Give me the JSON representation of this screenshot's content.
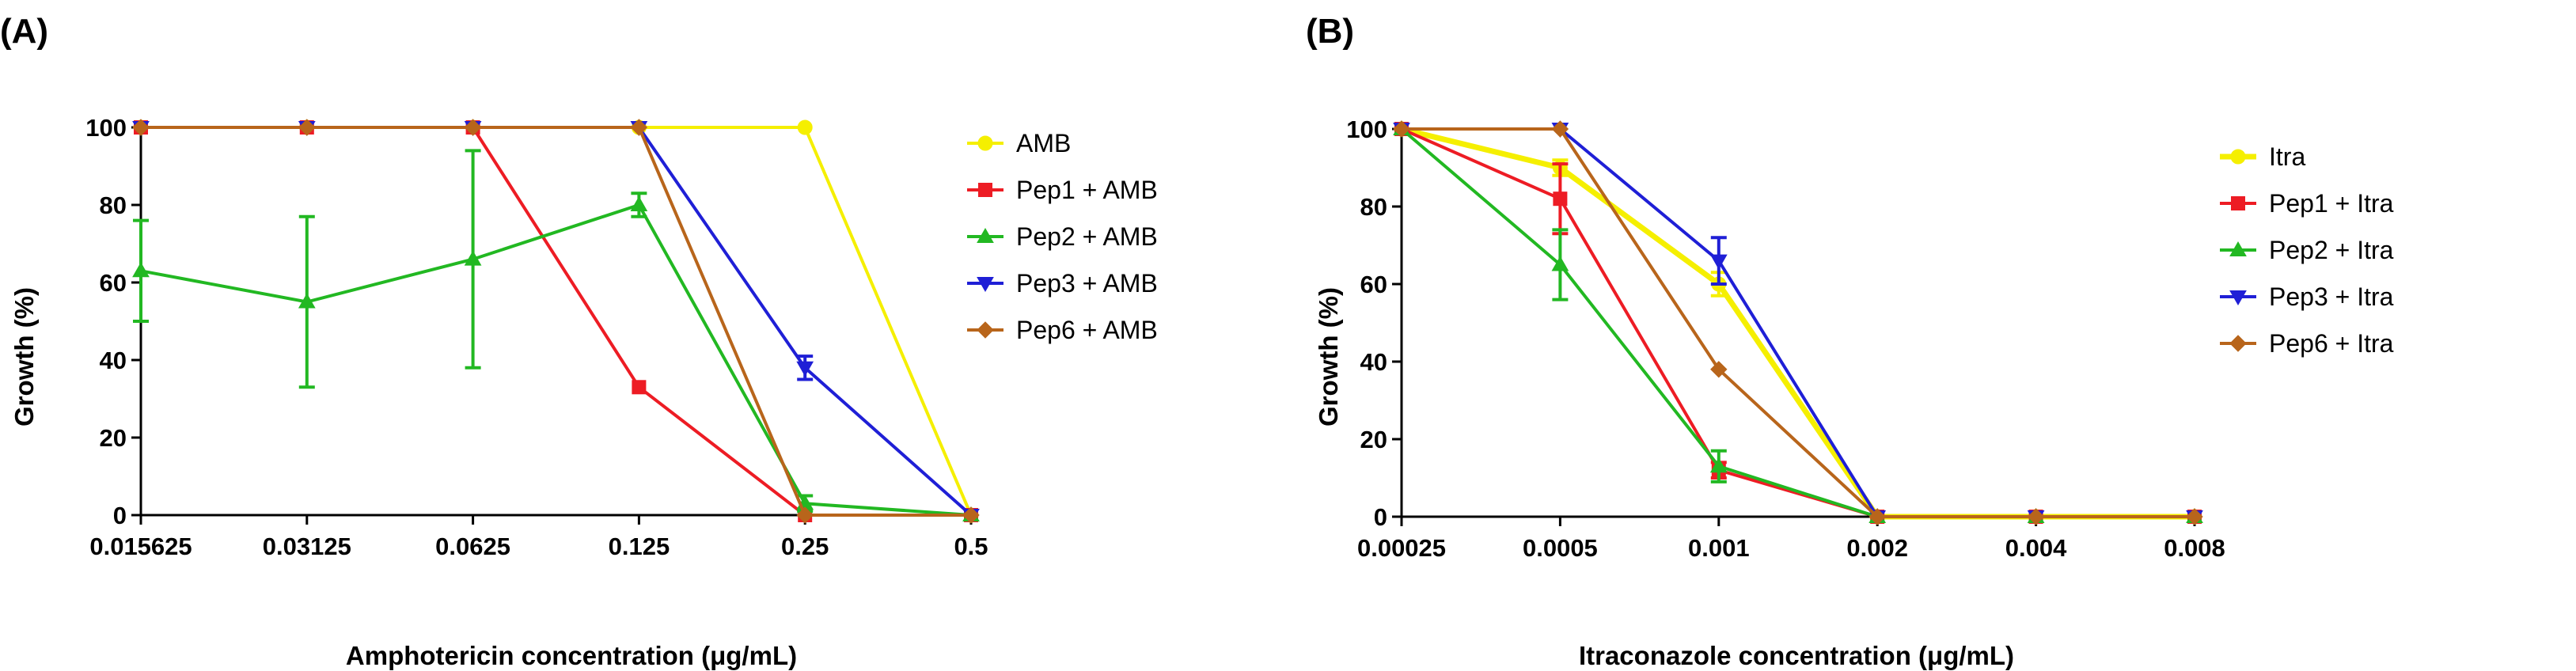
{
  "chart_data": [
    {
      "panel_label": "(A)",
      "type": "line",
      "xlabel": "Amphotericin concentration (μg/mL)",
      "ylabel": "Growth (%)",
      "x": [
        "0.015625",
        "0.03125",
        "0.0625",
        "0.125",
        "0.25",
        "0.5"
      ],
      "ylim": [
        0,
        100
      ],
      "yticks": [
        "0",
        "20",
        "40",
        "60",
        "80",
        "100"
      ],
      "grid": false,
      "legend_position": "right",
      "series": [
        {
          "name": "AMB",
          "color": "#f5ef00",
          "marker": "circle",
          "values": [
            100,
            100,
            100,
            100,
            100,
            0
          ],
          "errors": [
            0,
            0,
            0,
            0,
            0,
            0
          ]
        },
        {
          "name": "Pep1 + AMB",
          "color": "#ed1c24",
          "marker": "square",
          "values": [
            100,
            100,
            100,
            33,
            0,
            0
          ],
          "errors": [
            0,
            0,
            0,
            0,
            0,
            0
          ]
        },
        {
          "name": "Pep2 + AMB",
          "color": "#22b822",
          "marker": "triangle-up",
          "values": [
            63,
            55,
            66,
            80,
            3,
            0
          ],
          "errors": [
            13,
            22,
            28,
            3,
            2,
            0
          ]
        },
        {
          "name": "Pep3 + AMB",
          "color": "#1f1fd6",
          "marker": "triangle-down",
          "values": [
            100,
            100,
            100,
            100,
            38,
            0
          ],
          "errors": [
            0,
            0,
            0,
            0,
            3,
            0
          ]
        },
        {
          "name": "Pep6 + AMB",
          "color": "#b8651b",
          "marker": "diamond",
          "values": [
            100,
            100,
            100,
            100,
            0,
            0
          ],
          "errors": [
            0,
            0,
            0,
            0,
            0,
            0
          ]
        }
      ]
    },
    {
      "panel_label": "(B)",
      "type": "line",
      "xlabel": "Itraconazole concentration (μg/mL)",
      "ylabel": "Growth (%)",
      "x": [
        "0.00025",
        "0.0005",
        "0.001",
        "0.002",
        "0.004",
        "0.008"
      ],
      "ylim": [
        0,
        100
      ],
      "yticks": [
        "0",
        "20",
        "40",
        "60",
        "80",
        "100"
      ],
      "grid": false,
      "legend_position": "right",
      "series": [
        {
          "name": "Itra",
          "color": "#f5ef00",
          "marker": "circle",
          "values": [
            100,
            90,
            60,
            0,
            0,
            0
          ],
          "errors": [
            0,
            2,
            3,
            0,
            0,
            0
          ]
        },
        {
          "name": "Pep1 + Itra",
          "color": "#ed1c24",
          "marker": "square",
          "values": [
            100,
            82,
            12,
            0,
            0,
            0
          ],
          "errors": [
            0,
            9,
            2,
            0,
            0,
            0
          ]
        },
        {
          "name": "Pep2 + Itra",
          "color": "#22b822",
          "marker": "triangle-up",
          "values": [
            100,
            65,
            13,
            0,
            0,
            0
          ],
          "errors": [
            0,
            9,
            4,
            0,
            0,
            0
          ]
        },
        {
          "name": "Pep3 + Itra",
          "color": "#1f1fd6",
          "marker": "triangle-down",
          "values": [
            100,
            100,
            66,
            0,
            0,
            0
          ],
          "errors": [
            0,
            0,
            6,
            0,
            0,
            0
          ]
        },
        {
          "name": "Pep6 + Itra",
          "color": "#b8651b",
          "marker": "diamond",
          "values": [
            100,
            100,
            38,
            0,
            0,
            0
          ],
          "errors": [
            0,
            0,
            0,
            0,
            0,
            0
          ]
        }
      ]
    }
  ]
}
